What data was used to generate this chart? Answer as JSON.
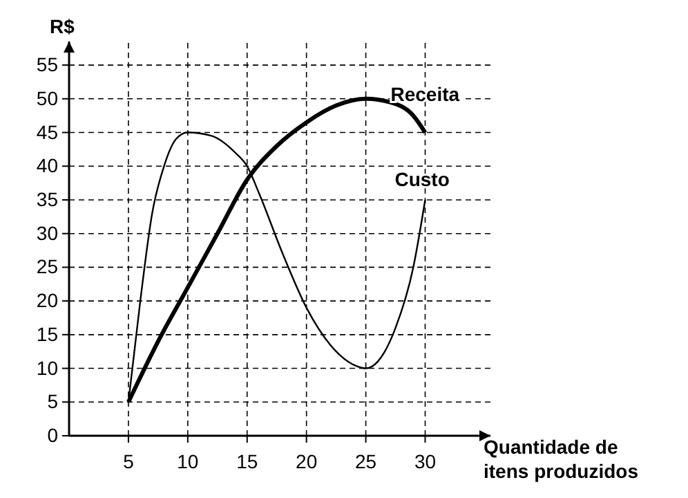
{
  "chart_data": {
    "type": "line",
    "xlabel": "Quantidade de itens produzidos",
    "ylabel": "R$",
    "xlim": [
      0,
      35.5
    ],
    "ylim": [
      0,
      58.5
    ],
    "xticks": [
      5,
      10,
      15,
      20,
      25,
      30
    ],
    "yticks": [
      {
        "value": 0,
        "label": "0"
      },
      5,
      10,
      15,
      20,
      25,
      30,
      35,
      40,
      45,
      50,
      55
    ],
    "grid": true,
    "line_style": "solid",
    "series": [
      {
        "name": "Receita",
        "color": "#000000",
        "x": [
          5,
          7.5,
          10,
          12.5,
          15,
          17.5,
          20,
          22.5,
          25,
          27,
          29,
          30
        ],
        "values": [
          5,
          14,
          22,
          30,
          38,
          43,
          46.5,
          49,
          50,
          49.5,
          47.5,
          45
        ]
      },
      {
        "name": "Custo",
        "color": "#000000",
        "x": [
          5,
          6,
          7,
          8,
          9,
          10,
          12,
          14,
          15,
          16,
          18,
          20,
          22,
          24,
          25,
          26,
          27.5,
          29,
          30
        ],
        "values": [
          5,
          20,
          33,
          40,
          44,
          45,
          44.5,
          42,
          40,
          36,
          27,
          19,
          13.5,
          10.5,
          10,
          11,
          16,
          25,
          35
        ]
      }
    ]
  }
}
